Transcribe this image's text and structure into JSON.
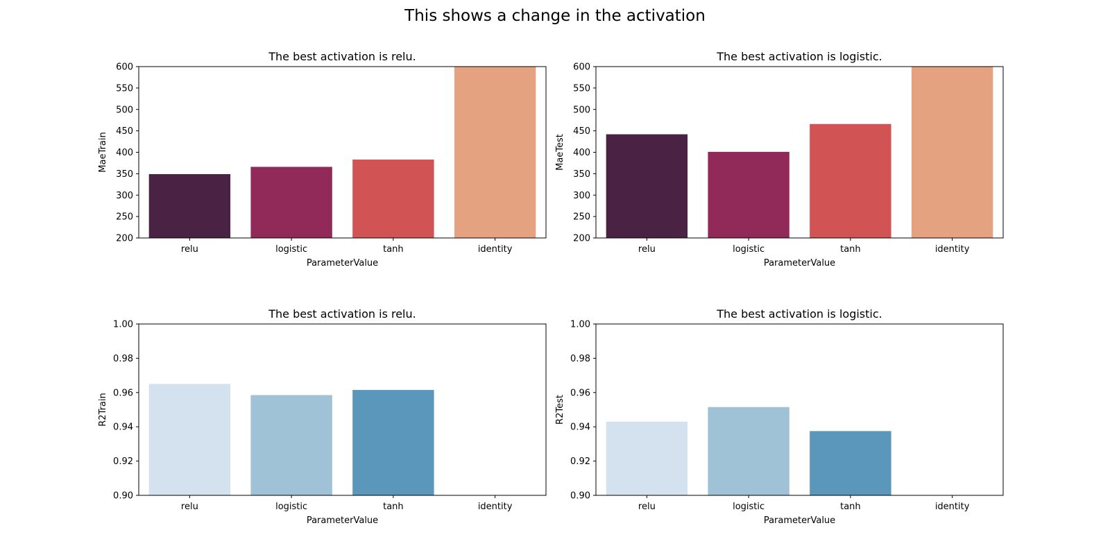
{
  "figure": {
    "title": "This shows a change in the activation"
  },
  "chart_data": [
    {
      "type": "bar",
      "title": "The best activation is relu.",
      "xlabel": "ParameterValue",
      "ylabel": "MaeTrain",
      "categories": [
        "relu",
        "logistic",
        "tanh",
        "identity"
      ],
      "values": [
        349,
        366,
        383,
        600
      ],
      "ylim": [
        200,
        600
      ],
      "yticks": [
        "200",
        "250",
        "300",
        "350",
        "400",
        "450",
        "500",
        "550",
        "600"
      ],
      "colors": [
        "#4a2344",
        "#912a58",
        "#d25354",
        "#e4a281"
      ],
      "grid": false
    },
    {
      "type": "bar",
      "title": "The best activation is logistic.",
      "xlabel": "ParameterValue",
      "ylabel": "MaeTest",
      "categories": [
        "relu",
        "logistic",
        "tanh",
        "identity"
      ],
      "values": [
        442,
        401,
        466,
        600
      ],
      "ylim": [
        200,
        600
      ],
      "yticks": [
        "200",
        "250",
        "300",
        "350",
        "400",
        "450",
        "500",
        "550",
        "600"
      ],
      "colors": [
        "#4a2344",
        "#912a58",
        "#d25354",
        "#e4a281"
      ],
      "grid": false
    },
    {
      "type": "bar",
      "title": "The best activation is relu.",
      "xlabel": "ParameterValue",
      "ylabel": "R2Train",
      "categories": [
        "relu",
        "logistic",
        "tanh",
        "identity"
      ],
      "values": [
        0.965,
        0.9585,
        0.9615,
        0.9
      ],
      "ylim": [
        0.9,
        1.0
      ],
      "yticks": [
        "0.90",
        "0.92",
        "0.94",
        "0.96",
        "0.98",
        "1.00"
      ],
      "colors": [
        "#d4e1ef",
        "#9fc2d6",
        "#5b96bb",
        "#3a6f9f"
      ],
      "grid": false
    },
    {
      "type": "bar",
      "title": "The best activation is logistic.",
      "xlabel": "ParameterValue",
      "ylabel": "R2Test",
      "categories": [
        "relu",
        "logistic",
        "tanh",
        "identity"
      ],
      "values": [
        0.943,
        0.9515,
        0.9375,
        0.9
      ],
      "ylim": [
        0.9,
        1.0
      ],
      "yticks": [
        "0.90",
        "0.92",
        "0.94",
        "0.96",
        "0.98",
        "1.00"
      ],
      "colors": [
        "#d4e1ef",
        "#9fc2d6",
        "#5b96bb",
        "#3a6f9f"
      ],
      "grid": false
    }
  ]
}
